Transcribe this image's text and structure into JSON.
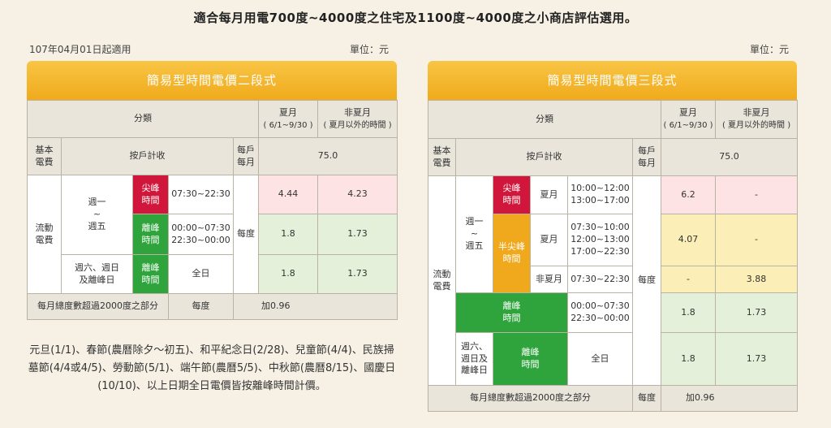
{
  "headline": "適合每月用電700度~4000度之住宅及1100度~4000度之小商店評估選用。",
  "effective_date": "107年04月01日起適用",
  "unit_left": "單位：元",
  "unit_right": "單位：元",
  "left": {
    "title": "簡易型時間電價二段式",
    "h_category": "分類",
    "h_summer": "夏月",
    "h_summer_sub": "( 6/1~9/30 )",
    "h_nonsummer": "非夏月",
    "h_nonsummer_sub": "( 夏月以外的時間 )",
    "basic_fee": "基本\n電費",
    "per_household": "按戶計收",
    "per_month": "每戶\n每月",
    "basic_value": "75.0",
    "flow_fee": "流動\n電費",
    "weekday": "週一\n~\n週五",
    "weekend": "週六、週日\n及離峰日",
    "peak_label": "尖峰\n時間",
    "offpeak_label": "離峰\n時間",
    "offpeak_label2": "離峰\n時間",
    "peak_time": "07:30~22:30",
    "offpeak_time": "00:00~07:30\n22:30~00:00",
    "allday": "全日",
    "per_kwh": "每度",
    "peak_summer": "4.44",
    "peak_nonsummer": "4.23",
    "off_summer": "1.8",
    "off_nonsummer": "1.73",
    "wk_summer": "1.8",
    "wk_nonsummer": "1.73",
    "over_label": "每月總度數超過2000度之部分",
    "over_unit": "每度",
    "over_value": "加0.96"
  },
  "right": {
    "title": "簡易型時間電價三段式",
    "h_category": "分類",
    "h_summer": "夏月",
    "h_summer_sub": "( 6/1~9/30 )",
    "h_nonsummer": "非夏月",
    "h_nonsummer_sub": "( 夏月以外的時間 )",
    "basic_fee": "基本\n電費",
    "per_household": "按戶計收",
    "per_month": "每戶\n每月",
    "basic_value": "75.0",
    "flow_fee": "流動\n電費",
    "weekday": "週一\n~\n週五",
    "weekend": "週六、\n週日及\n離峰日",
    "peak_label": "尖峰\n時間",
    "semi_label": "半尖峰\n時間",
    "offpeak_label": "離峰\n時間",
    "offpeak_label2": "離峰\n時間",
    "summer_month": "夏月",
    "summer_month2": "夏月",
    "nonsummer_month": "非夏月",
    "peak_time": "10:00~12:00\n13:00~17:00",
    "semi_time_summer": "07:30~10:00\n12:00~13:00\n17:00~22:30",
    "semi_time_nonsummer": "07:30~22:30",
    "offpeak_time": "00:00~07:30\n22:30~00:00",
    "allday": "全日",
    "per_kwh": "每度",
    "peak_summer": "6.2",
    "peak_nonsummer": "-",
    "semi_s_summer": "4.07",
    "semi_s_nonsummer": "-",
    "semi_n_summer": "-",
    "semi_n_nonsummer": "3.88",
    "off_summer": "1.8",
    "off_nonsummer": "1.73",
    "wk_summer": "1.8",
    "wk_nonsummer": "1.73",
    "over_label": "每月總度數超過2000度之部分",
    "over_unit": "每度",
    "over_value": "加0.96"
  },
  "holiday_note": "元旦(1/1)、春節(農曆除夕～初五)、和平紀念日(2/28)、兒童節(4/4)、民族掃墓節(4/4或4/5)、勞動節(5/1)、端午節(農曆5/5)、中秋節(農曆8/15)、國慶日(10/10)、以上日期全日電價皆按離峰時間計價。"
}
